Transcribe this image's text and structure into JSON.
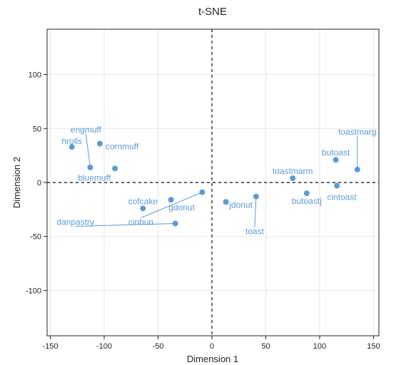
{
  "chart_data": {
    "type": "scatter",
    "title": "t-SNE",
    "xlabel": "Dimension 1",
    "ylabel": "Dimension 2",
    "xlim": [
      -153,
      155
    ],
    "ylim": [
      -142,
      142
    ],
    "xticks": [
      -150,
      -100,
      -50,
      0,
      50,
      100,
      150
    ],
    "yticks": [
      -100,
      -50,
      0,
      50,
      100
    ],
    "grid": true,
    "zero_lines": "dashed",
    "point_color": "#5b9bd5",
    "points": [
      {
        "label": "hrolls",
        "x": -130,
        "y": 33
      },
      {
        "label": "engmuff",
        "x": -113,
        "y": 14
      },
      {
        "label": "cornmuff",
        "x": -104,
        "y": 36
      },
      {
        "label": "bluemuff",
        "x": -90,
        "y": 13
      },
      {
        "label": "cofcake",
        "x": -64,
        "y": -24
      },
      {
        "label": "gdonut",
        "x": -38,
        "y": -16
      },
      {
        "label": "cinbun",
        "x": -9,
        "y": -9
      },
      {
        "label": "danpastry",
        "x": -34,
        "y": -38
      },
      {
        "label": "jdonut",
        "x": 13,
        "y": -18
      },
      {
        "label": "toast",
        "x": 41,
        "y": -13
      },
      {
        "label": "toastmarm",
        "x": 75,
        "y": 4
      },
      {
        "label": "butoastj",
        "x": 88,
        "y": -10
      },
      {
        "label": "butoast",
        "x": 115,
        "y": 21
      },
      {
        "label": "cintoast",
        "x": 116,
        "y": -3
      },
      {
        "label": "toastmarg",
        "x": 135,
        "y": 12
      }
    ]
  }
}
